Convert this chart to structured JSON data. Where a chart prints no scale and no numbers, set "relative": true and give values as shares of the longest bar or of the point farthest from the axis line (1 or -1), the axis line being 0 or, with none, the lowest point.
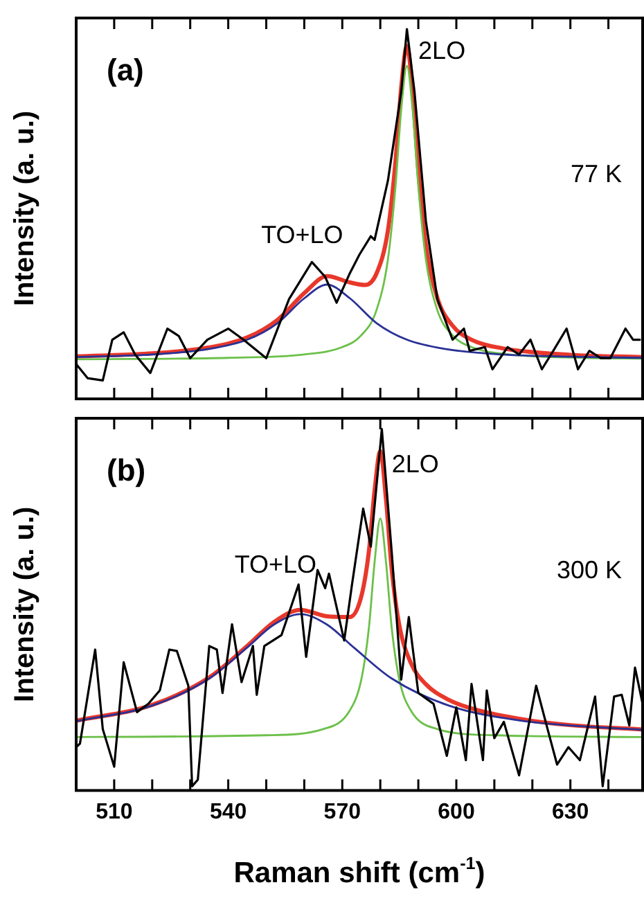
{
  "chart_data": [
    {
      "type": "line",
      "relative": true,
      "ylabel": "Intensity (a. u.)",
      "xlim": [
        500,
        649
      ],
      "xticks": [
        {
          "value": 500,
          "label": null
        },
        510,
        {
          "value": 520,
          "label": null
        },
        {
          "value": 530,
          "label": null
        },
        540,
        {
          "value": 550,
          "label": null
        },
        {
          "value": 560,
          "label": null
        },
        570,
        {
          "value": 580,
          "label": null
        },
        {
          "value": 590,
          "label": null
        },
        600,
        {
          "value": 610,
          "label": null
        },
        {
          "value": 620,
          "label": null
        },
        630,
        {
          "value": 640,
          "label": null
        }
      ],
      "tick_labels": false,
      "grid": false,
      "legend": false,
      "marker": "none",
      "annotations": [
        "(a)",
        "77 K",
        {
          "text": "TO+LO",
          "x": 566,
          "y": 0.309
        },
        {
          "text": "2LO",
          "x": 590,
          "y": 0.92
        }
      ],
      "series": [
        {
          "color": "#000000",
          "x": [
            500,
            503,
            507,
            509.5,
            512.5,
            515.5,
            519.5,
            524,
            527,
            530,
            534.5,
            540,
            544,
            550,
            556,
            562,
            565.5,
            568.5,
            572,
            574.5,
            577.5,
            578.5,
            582,
            585.5,
            587,
            589,
            592,
            595,
            599,
            602,
            603.5,
            607.5,
            609.5,
            613.5,
            616.5,
            619.5,
            622.5,
            625.5,
            629,
            632,
            635,
            638,
            640.5,
            644.5,
            646.5,
            648.5
          ],
          "values": [
            0.094,
            0.056,
            0.05,
            0.16,
            0.18,
            0.12,
            0.07,
            0.19,
            0.17,
            0.11,
            0.16,
            0.19,
            0.16,
            0.11,
            0.27,
            0.37,
            0.33,
            0.26,
            0.34,
            0.39,
            0.44,
            0.43,
            0.59,
            0.83,
            1.0,
            0.83,
            0.48,
            0.27,
            0.16,
            0.19,
            0.13,
            0.14,
            0.08,
            0.14,
            0.12,
            0.16,
            0.08,
            0.13,
            0.19,
            0.08,
            0.13,
            0.11,
            0.11,
            0.19,
            0.16,
            0.16
          ]
        },
        {
          "color": "#2a3196",
          "x": [
            500,
            520,
            535,
            545,
            553,
            560,
            566,
            572,
            579,
            587,
            597,
            612,
            630,
            649
          ],
          "values": [
            0.113,
            0.12,
            0.135,
            0.16,
            0.205,
            0.272,
            0.309,
            0.272,
            0.205,
            0.16,
            0.135,
            0.12,
            0.114,
            0.111
          ]
        },
        {
          "color": "#6cc04a",
          "x": [
            500,
            540,
            560,
            570,
            575,
            579,
            582,
            584,
            585.5,
            587,
            588.5,
            590,
            592,
            595,
            599,
            604,
            614,
            634,
            649
          ],
          "values": [
            0.107,
            0.111,
            0.12,
            0.14,
            0.172,
            0.24,
            0.377,
            0.575,
            0.782,
            0.9,
            0.782,
            0.575,
            0.377,
            0.24,
            0.172,
            0.14,
            0.12,
            0.111,
            0.109
          ]
        },
        {
          "color": "#e8382b",
          "x": [
            500,
            520,
            535,
            545,
            553,
            560,
            566,
            572,
            576,
            579,
            582,
            584,
            585.5,
            587,
            588.5,
            590,
            592,
            595,
            599,
            604,
            612,
            630,
            649
          ],
          "values": [
            0.115,
            0.123,
            0.139,
            0.166,
            0.214,
            0.286,
            0.332,
            0.315,
            0.308,
            0.339,
            0.455,
            0.642,
            0.842,
            0.954,
            0.831,
            0.619,
            0.416,
            0.273,
            0.198,
            0.16,
            0.137,
            0.119,
            0.113
          ]
        }
      ]
    },
    {
      "type": "line",
      "relative": true,
      "ylabel": "Intensity (a. u.)",
      "xlabel": "Raman shift (cm$^{-1}$)",
      "xlim": [
        500,
        649
      ],
      "xticks": [
        {
          "value": 500,
          "label": null
        },
        510,
        {
          "value": 520,
          "label": null
        },
        {
          "value": 530,
          "label": null
        },
        540,
        {
          "value": 550,
          "label": null
        },
        {
          "value": 560,
          "label": null
        },
        570,
        {
          "value": 580,
          "label": null
        },
        {
          "value": 590,
          "label": null
        },
        600,
        {
          "value": 610,
          "label": null
        },
        {
          "value": 620,
          "label": null
        },
        630,
        {
          "value": 640,
          "label": null
        }
      ],
      "tick_labels": "x",
      "grid": false,
      "legend": false,
      "marker": "none",
      "annotations": [
        "(b)",
        "300 K",
        {
          "text": "TO+LO",
          "x": 559,
          "y": 0.488
        },
        {
          "text": "2LO",
          "x": 583,
          "y": 0.88
        }
      ],
      "series": [
        {
          "color": "#000000",
          "x": [
            500,
            501,
            505,
            507,
            510,
            512.5,
            516,
            519,
            522,
            524.5,
            526.5,
            529.5,
            530.5,
            532,
            535,
            537,
            538.5,
            541,
            543.5,
            546.5,
            547.5,
            549.5,
            554,
            558.5,
            560.5,
            563.5,
            565.5,
            566.5,
            570.5,
            572.5,
            575.5,
            577.5,
            580.4,
            583,
            585.5,
            587.5,
            590,
            594,
            597.5,
            600,
            602.5,
            604,
            607,
            608,
            610,
            612.5,
            616.5,
            621,
            624,
            626.5,
            629.5,
            632.5,
            636.5,
            638.5,
            641.5,
            643.5,
            645.5,
            647,
            649
          ],
          "values": [
            0.12,
            0.13,
            0.39,
            0.17,
            0.066,
            0.355,
            0.217,
            0.24,
            0.277,
            0.39,
            0.386,
            0.29,
            0.012,
            0.03,
            0.4,
            0.39,
            0.27,
            0.46,
            0.3,
            0.4,
            0.265,
            0.4,
            0.43,
            0.57,
            0.37,
            0.61,
            0.56,
            0.6,
            0.415,
            0.566,
            0.78,
            0.675,
            1.0,
            0.66,
            0.307,
            0.48,
            0.27,
            0.24,
            0.096,
            0.23,
            0.084,
            0.295,
            0.084,
            0.277,
            0.145,
            0.19,
            0.042,
            0.29,
            0.17,
            0.072,
            0.12,
            0.084,
            0.26,
            0.012,
            0.26,
            0.265,
            0.18,
            0.34,
            0.24
          ]
        },
        {
          "color": "#2a3196",
          "x": [
            500,
            520,
            535,
            545,
            552,
            559,
            566,
            573,
            583,
            598,
            618,
            649
          ],
          "values": [
            0.192,
            0.235,
            0.31,
            0.396,
            0.459,
            0.488,
            0.459,
            0.396,
            0.31,
            0.235,
            0.192,
            0.168
          ]
        },
        {
          "color": "#6cc04a",
          "x": [
            500,
            550,
            565,
            572,
            575,
            577,
            578.5,
            580,
            581.5,
            583,
            585,
            588,
            595,
            610,
            649
          ],
          "values": [
            0.148,
            0.153,
            0.17,
            0.222,
            0.307,
            0.45,
            0.632,
            0.753,
            0.632,
            0.45,
            0.307,
            0.222,
            0.17,
            0.153,
            0.148
          ]
        },
        {
          "color": "#e8382b",
          "x": [
            500,
            520,
            535,
            545,
            552,
            559,
            566,
            572,
            575,
            577,
            578.5,
            580,
            581.5,
            583,
            585,
            588,
            592,
            598,
            605,
            618,
            630,
            649
          ],
          "values": [
            0.193,
            0.237,
            0.313,
            0.4,
            0.466,
            0.5,
            0.482,
            0.48,
            0.537,
            0.662,
            0.83,
            0.939,
            0.806,
            0.613,
            0.457,
            0.354,
            0.294,
            0.251,
            0.224,
            0.196,
            0.181,
            0.169
          ]
        }
      ]
    }
  ]
}
